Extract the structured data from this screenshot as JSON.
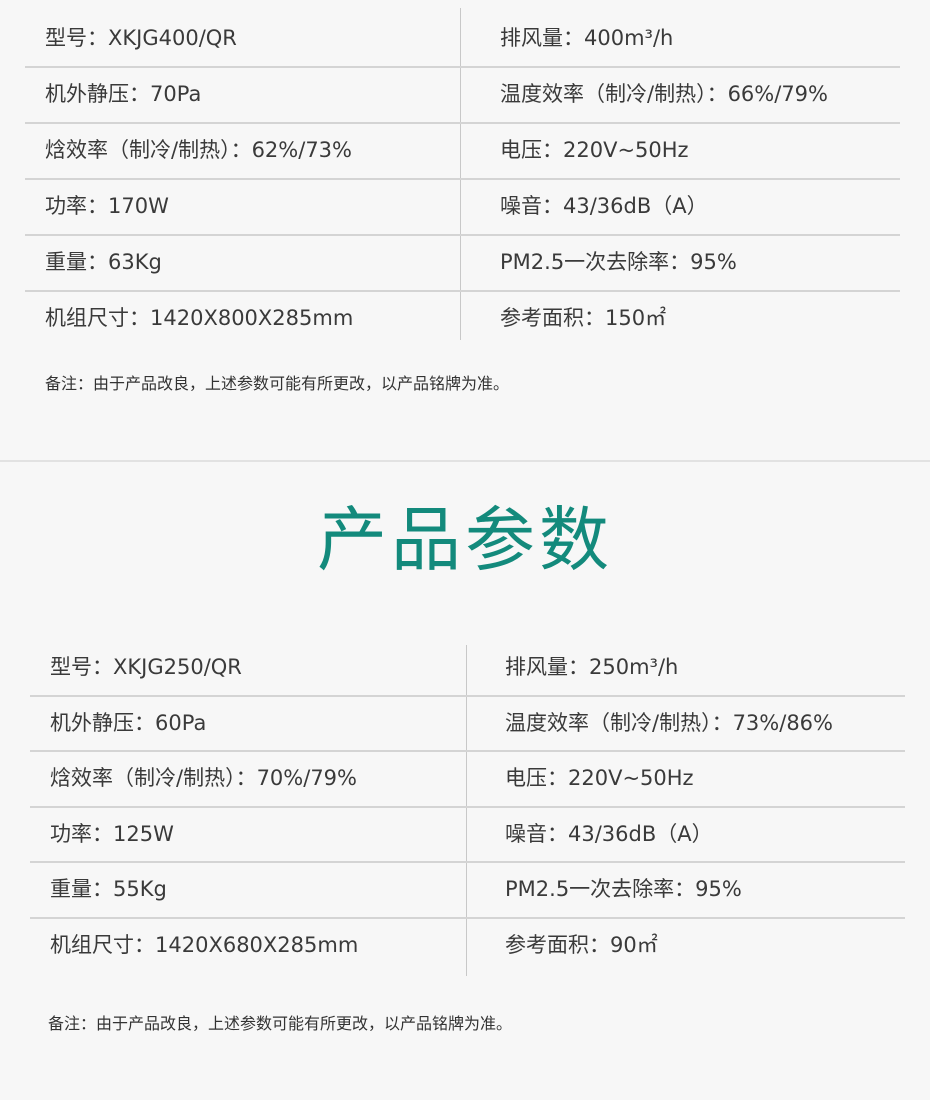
{
  "title": "产品参数",
  "title_color": "#138a7c",
  "tables": [
    {
      "rows": [
        {
          "left": "型号：XKJG400/QR",
          "right": "排风量：400m³/h"
        },
        {
          "left": "机外静压：70Pa",
          "right": "温度效率（制冷/制热）：66%/79%"
        },
        {
          "left": "焓效率（制冷/制热）：62%/73%",
          "right": "电压：220V~50Hz"
        },
        {
          "left": "功率：170W",
          "right": "噪音：43/36dB（A）"
        },
        {
          "left": "重量：63Kg",
          "right": "PM2.5一次去除率：95%"
        },
        {
          "left": "机组尺寸：1420X800X285mm",
          "right": "参考面积：150㎡"
        }
      ],
      "note": "备注：由于产品改良，上述参数可能有所更改，以产品铭牌为准。"
    },
    {
      "rows": [
        {
          "left": "型号：XKJG250/QR",
          "right": "排风量：250m³/h"
        },
        {
          "left": "机外静压：60Pa",
          "right": "温度效率（制冷/制热）：73%/86%"
        },
        {
          "left": "焓效率（制冷/制热）：70%/79%",
          "right": "电压：220V~50Hz"
        },
        {
          "left": "功率：125W",
          "right": "噪音：43/36dB（A）"
        },
        {
          "left": "重量：55Kg",
          "right": "PM2.5一次去除率：95%"
        },
        {
          "left": "机组尺寸：1420X680X285mm",
          "right": "参考面积：90㎡"
        }
      ],
      "note": "备注：由于产品改良，上述参数可能有所更改，以产品铭牌为准。"
    }
  ]
}
